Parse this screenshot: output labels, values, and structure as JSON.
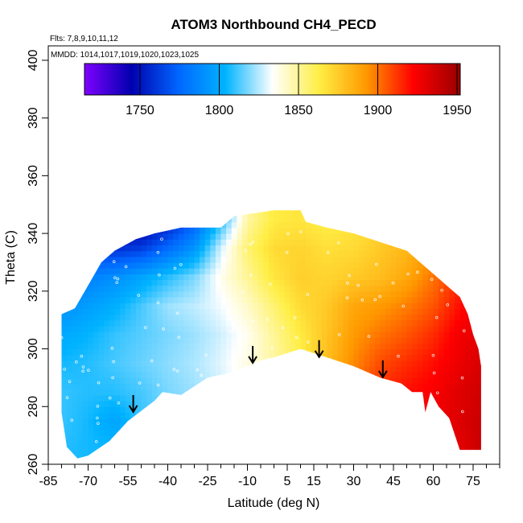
{
  "chart_data": {
    "type": "heatmap",
    "title": "ATOM3 Northbound CH4_PECD",
    "flights_label": "Flts: 7,8,9,10,11,12",
    "dates_label": "MMDD: 1014,1017,1019,1020,1023,1025",
    "xlabel": "Latitude (deg N)",
    "ylabel": "Theta (C)",
    "xlim": [
      -85,
      85
    ],
    "ylim": [
      260,
      405
    ],
    "x_ticks": [
      -85,
      -70,
      -55,
      -40,
      -25,
      -10,
      5,
      15,
      30,
      45,
      60,
      75
    ],
    "y_ticks": [
      260,
      280,
      300,
      320,
      340,
      360,
      380,
      400
    ],
    "colorbar": {
      "range": [
        1715,
        1952
      ],
      "ticks": [
        1750,
        1800,
        1850,
        1900,
        1950
      ],
      "colors": [
        "#7f00ff",
        "#0000b0",
        "#0066ff",
        "#00b3ff",
        "#ffffff",
        "#ffee44",
        "#ff9900",
        "#ff0000",
        "#990000"
      ]
    },
    "field": {
      "lat": [
        -80,
        -70,
        -60,
        -50,
        -40,
        -30,
        -20,
        -10,
        0,
        10,
        20,
        30,
        40,
        50,
        60,
        70,
        78
      ],
      "theta": [
        265,
        275,
        285,
        295,
        305,
        315,
        325,
        335,
        345
      ],
      "ch4": [
        [
          1808,
          1806,
          1806,
          1810,
          1814,
          1820,
          1826,
          1834,
          1842,
          1870,
          1890,
          1900,
          1914,
          1920,
          1924,
          1930,
          1938
        ],
        [
          1810,
          1806,
          1798,
          1810,
          1816,
          1822,
          1828,
          1836,
          1844,
          1866,
          1888,
          1902,
          1914,
          1920,
          1926,
          1932,
          1938
        ],
        [
          1810,
          1808,
          1808,
          1812,
          1818,
          1822,
          1828,
          1836,
          1846,
          1864,
          1886,
          1902,
          1914,
          1920,
          1924,
          1932,
          1936
        ],
        [
          1806,
          1808,
          1812,
          1816,
          1820,
          1824,
          1830,
          1838,
          1848,
          1862,
          1880,
          1896,
          1908,
          1914,
          1920,
          1928,
          1934
        ],
        [
          1800,
          1804,
          1810,
          1814,
          1818,
          1822,
          1828,
          1836,
          1850,
          1864,
          1878,
          1892,
          1900,
          1906,
          1914,
          1926,
          1930
        ],
        [
          1790,
          1796,
          1802,
          1812,
          1822,
          1826,
          1832,
          1842,
          1856,
          1870,
          1876,
          1888,
          1892,
          1898,
          1906,
          1920,
          1926
        ],
        [
          1780,
          1784,
          1790,
          1798,
          1808,
          1818,
          1836,
          1850,
          1866,
          1874,
          1872,
          1876,
          1880,
          1888,
          1900,
          1914,
          1920
        ],
        [
          1770,
          1764,
          1758,
          1762,
          1776,
          1792,
          1828,
          1856,
          1870,
          1872,
          1868,
          1870,
          1876,
          1882,
          1892,
          1906,
          1912
        ],
        [
          1760,
          1752,
          1744,
          1736,
          1750,
          1770,
          1806,
          1848,
          1864,
          1866,
          1862,
          1866,
          1870,
          1876,
          1884,
          1898,
          1904
        ]
      ],
      "bottom_boundary": [
        [
          -80,
          278
        ],
        [
          -78,
          266
        ],
        [
          -74,
          262
        ],
        [
          -70,
          263
        ],
        [
          -62,
          268
        ],
        [
          -55,
          275
        ],
        [
          -45,
          282
        ],
        [
          -42,
          285
        ],
        [
          -35,
          284
        ],
        [
          -25,
          290
        ],
        [
          -15,
          292
        ],
        [
          -5,
          296
        ],
        [
          0,
          297
        ],
        [
          10,
          300
        ],
        [
          20,
          297
        ],
        [
          30,
          294
        ],
        [
          40,
          290
        ],
        [
          48,
          288
        ],
        [
          52,
          285
        ],
        [
          56,
          285
        ],
        [
          57,
          278
        ],
        [
          59,
          285
        ],
        [
          62,
          280
        ],
        [
          66,
          276
        ],
        [
          70,
          265
        ],
        [
          76,
          265
        ],
        [
          78,
          265
        ]
      ],
      "top_boundary": [
        [
          78,
          294
        ],
        [
          77,
          300
        ],
        [
          75,
          305
        ],
        [
          73,
          312
        ],
        [
          70,
          318
        ],
        [
          65,
          322
        ],
        [
          60,
          326
        ],
        [
          55,
          330
        ],
        [
          50,
          334
        ],
        [
          40,
          337
        ],
        [
          30,
          340
        ],
        [
          20,
          342
        ],
        [
          12,
          344
        ],
        [
          10,
          348
        ],
        [
          0,
          348
        ],
        [
          -15,
          346
        ],
        [
          -20,
          342
        ],
        [
          -35,
          342
        ],
        [
          -45,
          340
        ],
        [
          -52,
          338
        ],
        [
          -60,
          334
        ],
        [
          -65,
          330
        ],
        [
          -70,
          322
        ],
        [
          -75,
          314
        ],
        [
          -80,
          312
        ]
      ]
    },
    "arrows": [
      {
        "lat": -53,
        "theta": 284
      },
      {
        "lat": -8,
        "theta": 301
      },
      {
        "lat": 17,
        "theta": 303
      },
      {
        "lat": 41,
        "theta": 296
      }
    ]
  }
}
